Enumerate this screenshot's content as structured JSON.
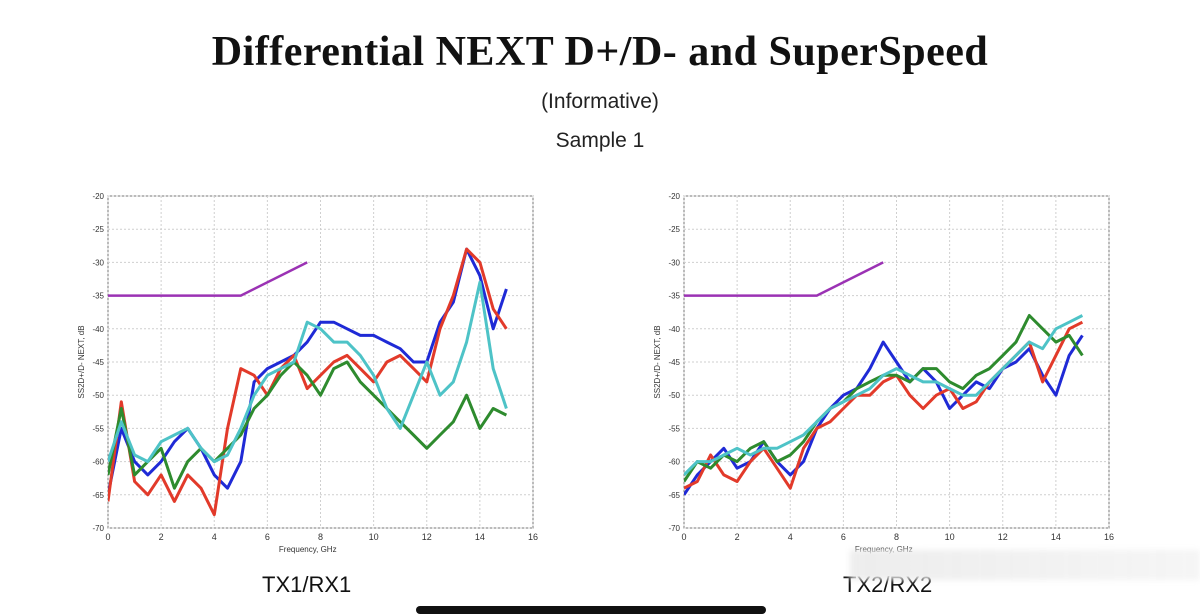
{
  "header": {
    "title": "Differential NEXT D+/D- and SuperSpeed",
    "subtitle": "(Informative)",
    "sample": "Sample 1"
  },
  "chart_data": [
    {
      "type": "line",
      "caption": "TX1/RX1",
      "xlabel": "Frequency, GHz",
      "ylabel": "SS2D+/D- NEXT, dB",
      "xlim": [
        0,
        16
      ],
      "ylim": [
        -70,
        -20
      ],
      "xticks": [
        "0",
        "2",
        "4",
        "6",
        "8",
        "10",
        "12",
        "14",
        "16"
      ],
      "yticks": [
        "-20",
        "-25",
        "-30",
        "-35",
        "-40",
        "-45",
        "-50",
        "-55",
        "-60",
        "-65",
        "-70"
      ],
      "grid": true,
      "limit_line": {
        "color": "#9b32b4",
        "x": [
          0,
          5,
          7.5
        ],
        "y": [
          -35,
          -35,
          -30
        ]
      },
      "series": [
        {
          "color": "#1f2ad6",
          "x": [
            0,
            0.5,
            1,
            1.5,
            2,
            2.5,
            3,
            3.5,
            4,
            4.5,
            5,
            5.5,
            6,
            6.5,
            7,
            7.5,
            8,
            8.5,
            9,
            9.5,
            10,
            10.5,
            11,
            11.5,
            12,
            12.5,
            13,
            13.5,
            14,
            14.5,
            15
          ],
          "y": [
            -65,
            -55,
            -60,
            -62,
            -60,
            -57,
            -55,
            -58,
            -62,
            -64,
            -60,
            -48,
            -46,
            -45,
            -44,
            -42,
            -39,
            -39,
            -40,
            -41,
            -41,
            -42,
            -43,
            -45,
            -45,
            -39,
            -36,
            -28,
            -32,
            -40,
            -34
          ]
        },
        {
          "color": "#e23a2a",
          "x": [
            0,
            0.5,
            1,
            1.5,
            2,
            2.5,
            3,
            3.5,
            4,
            4.5,
            5,
            5.5,
            6,
            6.5,
            7,
            7.5,
            8,
            8.5,
            9,
            9.5,
            10,
            10.5,
            11,
            11.5,
            12,
            12.5,
            13,
            13.5,
            14,
            14.5,
            15
          ],
          "y": [
            -66,
            -51,
            -63,
            -65,
            -62,
            -66,
            -62,
            -64,
            -68,
            -55,
            -46,
            -47,
            -50,
            -46,
            -44,
            -49,
            -47,
            -45,
            -44,
            -46,
            -48,
            -45,
            -44,
            -46,
            -48,
            -40,
            -35,
            -28,
            -30,
            -37,
            -40
          ]
        },
        {
          "color": "#2e8b2e",
          "x": [
            0,
            0.5,
            1,
            1.5,
            2,
            2.5,
            3,
            3.5,
            4,
            4.5,
            5,
            5.5,
            6,
            6.5,
            7,
            7.5,
            8,
            8.5,
            9,
            9.5,
            10,
            10.5,
            11,
            11.5,
            12,
            12.5,
            13,
            13.5,
            14,
            14.5,
            15
          ],
          "y": [
            -62,
            -52,
            -62,
            -60,
            -58,
            -64,
            -60,
            -58,
            -60,
            -58,
            -56,
            -52,
            -50,
            -47,
            -45,
            -47,
            -50,
            -46,
            -45,
            -48,
            -50,
            -52,
            -54,
            -56,
            -58,
            -56,
            -54,
            -50,
            -55,
            -52,
            -53
          ]
        },
        {
          "color": "#4ec3c7",
          "x": [
            0,
            0.5,
            1,
            1.5,
            2,
            2.5,
            3,
            3.5,
            4,
            4.5,
            5,
            5.5,
            6,
            6.5,
            7,
            7.5,
            8,
            8.5,
            9,
            9.5,
            10,
            10.5,
            11,
            11.5,
            12,
            12.5,
            13,
            13.5,
            14,
            14.5,
            15
          ],
          "y": [
            -60,
            -54,
            -59,
            -60,
            -57,
            -56,
            -55,
            -58,
            -60,
            -59,
            -55,
            -50,
            -47,
            -46,
            -45,
            -39,
            -40,
            -42,
            -42,
            -44,
            -47,
            -52,
            -55,
            -50,
            -45,
            -50,
            -48,
            -42,
            -33,
            -46,
            -52
          ]
        }
      ]
    },
    {
      "type": "line",
      "caption": "TX2/RX2",
      "xlabel": "Frequency, GHz",
      "ylabel": "SS2D+/D- NEXT, dB",
      "xlim": [
        0,
        16
      ],
      "ylim": [
        -70,
        -20
      ],
      "xticks": [
        "0",
        "2",
        "4",
        "6",
        "8",
        "10",
        "12",
        "14",
        "16"
      ],
      "yticks": [
        "-20",
        "-25",
        "-30",
        "-35",
        "-40",
        "-45",
        "-50",
        "-55",
        "-60",
        "-65",
        "-70"
      ],
      "grid": true,
      "limit_line": {
        "color": "#9b32b4",
        "x": [
          0,
          5,
          7.5
        ],
        "y": [
          -35,
          -35,
          -30
        ]
      },
      "series": [
        {
          "color": "#1f2ad6",
          "x": [
            0,
            0.5,
            1,
            1.5,
            2,
            2.5,
            3,
            3.5,
            4,
            4.5,
            5,
            5.5,
            6,
            6.5,
            7,
            7.5,
            8,
            8.5,
            9,
            9.5,
            10,
            10.5,
            11,
            11.5,
            12,
            12.5,
            13,
            13.5,
            14,
            14.5,
            15
          ],
          "y": [
            -65,
            -62,
            -60,
            -58,
            -61,
            -60,
            -57,
            -60,
            -62,
            -60,
            -55,
            -52,
            -50,
            -49,
            -46,
            -42,
            -45,
            -48,
            -46,
            -48,
            -52,
            -50,
            -48,
            -49,
            -46,
            -45,
            -43,
            -47,
            -50,
            -44,
            -41
          ]
        },
        {
          "color": "#e23a2a",
          "x": [
            0,
            0.5,
            1,
            1.5,
            2,
            2.5,
            3,
            3.5,
            4,
            4.5,
            5,
            5.5,
            6,
            6.5,
            7,
            7.5,
            8,
            8.5,
            9,
            9.5,
            10,
            10.5,
            11,
            11.5,
            12,
            12.5,
            13,
            13.5,
            14,
            14.5,
            15
          ],
          "y": [
            -64,
            -63,
            -59,
            -62,
            -63,
            -60,
            -58,
            -61,
            -64,
            -58,
            -55,
            -54,
            -52,
            -50,
            -50,
            -48,
            -47,
            -50,
            -52,
            -50,
            -49,
            -52,
            -51,
            -48,
            -46,
            -44,
            -42,
            -48,
            -44,
            -40,
            -39
          ]
        },
        {
          "color": "#2e8b2e",
          "x": [
            0,
            0.5,
            1,
            1.5,
            2,
            2.5,
            3,
            3.5,
            4,
            4.5,
            5,
            5.5,
            6,
            6.5,
            7,
            7.5,
            8,
            8.5,
            9,
            9.5,
            10,
            10.5,
            11,
            11.5,
            12,
            12.5,
            13,
            13.5,
            14,
            14.5,
            15
          ],
          "y": [
            -63,
            -60,
            -61,
            -59,
            -60,
            -58,
            -57,
            -60,
            -59,
            -57,
            -54,
            -52,
            -51,
            -49,
            -48,
            -47,
            -47,
            -48,
            -46,
            -46,
            -48,
            -49,
            -47,
            -46,
            -44,
            -42,
            -38,
            -40,
            -42,
            -41,
            -44
          ]
        },
        {
          "color": "#4ec3c7",
          "x": [
            0,
            0.5,
            1,
            1.5,
            2,
            2.5,
            3,
            3.5,
            4,
            4.5,
            5,
            5.5,
            6,
            6.5,
            7,
            7.5,
            8,
            8.5,
            9,
            9.5,
            10,
            10.5,
            11,
            11.5,
            12,
            12.5,
            13,
            13.5,
            14,
            14.5,
            15
          ],
          "y": [
            -62,
            -60,
            -60,
            -59,
            -58,
            -59,
            -58,
            -58,
            -57,
            -56,
            -54,
            -52,
            -51,
            -50,
            -49,
            -47,
            -46,
            -47,
            -48,
            -48,
            -49,
            -50,
            -50,
            -48,
            -46,
            -44,
            -42,
            -43,
            -40,
            -39,
            -38
          ]
        }
      ]
    }
  ]
}
